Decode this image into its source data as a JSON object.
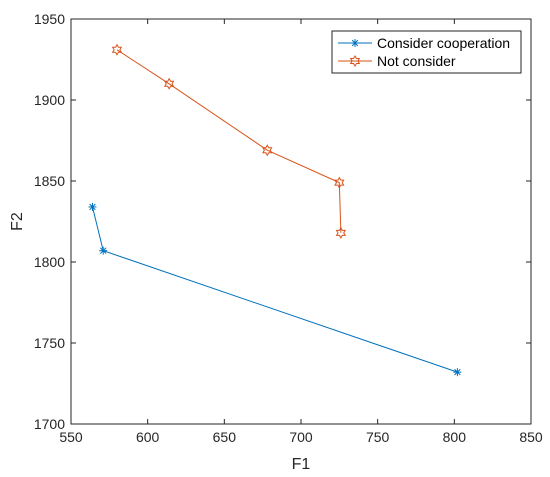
{
  "chart_data": {
    "type": "line",
    "title": "",
    "xlabel": "F1",
    "ylabel": "F2",
    "xlim": [
      550,
      850
    ],
    "ylim": [
      1700,
      1950
    ],
    "xticks": [
      550,
      600,
      650,
      700,
      750,
      800,
      850
    ],
    "yticks": [
      1700,
      1750,
      1800,
      1850,
      1900,
      1950
    ],
    "grid": false,
    "legend_position": "top-right",
    "series": [
      {
        "name": "Consider cooperation",
        "color": "#0072BD",
        "marker": "asterisk",
        "x": [
          564,
          571,
          802
        ],
        "y": [
          1834,
          1807,
          1732
        ]
      },
      {
        "name": "Not consider",
        "color": "#D95319",
        "marker": "hexagram",
        "x": [
          580,
          614,
          678,
          725,
          726
        ],
        "y": [
          1931,
          1910,
          1869,
          1849,
          1818
        ]
      }
    ]
  }
}
